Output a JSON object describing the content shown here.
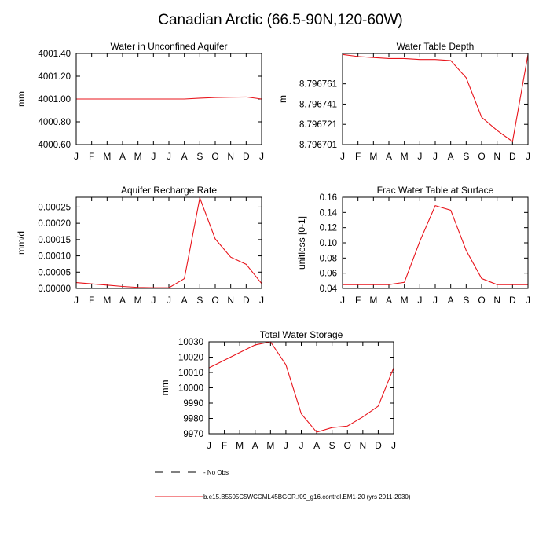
{
  "title": "Canadian Arctic (66.5-90N,120-60W)",
  "months": [
    "J",
    "F",
    "M",
    "A",
    "M",
    "J",
    "J",
    "A",
    "S",
    "O",
    "N",
    "D",
    "J"
  ],
  "line_color": "#e8141b",
  "chart_data": [
    {
      "type": "line",
      "title": "Water in Unconfined Aquifer",
      "ylabel": "mm",
      "ylim": [
        4000.6,
        4001.4
      ],
      "yticks": [
        4000.6,
        4000.8,
        4001.0,
        4001.2,
        4001.4
      ],
      "yticklabels": [
        "4000.60",
        "4000.80",
        "4001.00",
        "4001.20",
        "4001.40"
      ],
      "values": [
        4001.0,
        4001.0,
        4001.0,
        4001.0,
        4001.0,
        4001.0,
        4001.0,
        4001.0,
        4001.007,
        4001.013,
        4001.016,
        4001.018,
        4001.0
      ]
    },
    {
      "type": "line",
      "title": "Water Table Depth",
      "ylabel": "m",
      "ylim": [
        8.796701,
        8.796791
      ],
      "yticks": [
        8.796701,
        8.796721,
        8.796741,
        8.796761
      ],
      "yticklabels": [
        "8.796701",
        "8.796721",
        "8.796741",
        "8.796761"
      ],
      "values": [
        8.79679,
        8.796788,
        8.796787,
        8.796786,
        8.796786,
        8.796785,
        8.796785,
        8.796784,
        8.796767,
        8.796728,
        8.796715,
        8.796704,
        8.79679
      ]
    },
    {
      "type": "line",
      "title": "Aquifer Recharge Rate",
      "ylabel": "mm/d",
      "ylim": [
        0,
        0.00028
      ],
      "yticks": [
        0,
        5e-05,
        0.0001,
        0.00015,
        0.0002,
        0.00025
      ],
      "yticklabels": [
        "0.00000",
        "0.00005",
        "0.00010",
        "0.00015",
        "0.00020",
        "0.00025"
      ],
      "values": [
        1.8e-05,
        1.4e-05,
        1e-05,
        6e-06,
        3e-06,
        2e-06,
        2e-06,
        3e-05,
        0.000278,
        0.000152,
        9.6e-05,
        7.4e-05,
        1.5e-05
      ]
    },
    {
      "type": "line",
      "title": "Frac Water Table at Surface",
      "ylabel": "unitless [0-1]",
      "ylim": [
        0.04,
        0.16
      ],
      "yticks": [
        0.04,
        0.06,
        0.08,
        0.1,
        0.12,
        0.14,
        0.16
      ],
      "yticklabels": [
        "0.04",
        "0.06",
        "0.08",
        "0.10",
        "0.12",
        "0.14",
        "0.16"
      ],
      "values": [
        0.045,
        0.045,
        0.045,
        0.045,
        0.048,
        0.102,
        0.149,
        0.143,
        0.09,
        0.053,
        0.045,
        0.045,
        0.045
      ]
    },
    {
      "type": "line",
      "title": "Total Water Storage",
      "ylabel": "mm",
      "ylim": [
        9970,
        10030
      ],
      "yticks": [
        9970,
        9980,
        9990,
        10000,
        10010,
        10020,
        10030
      ],
      "yticklabels": [
        "9970",
        "9980",
        "9990",
        "10000",
        "10010",
        "10020",
        "10030"
      ],
      "values": [
        10013,
        10018,
        10023,
        10028,
        10030,
        10015,
        9983,
        9971,
        9974,
        9975,
        9981,
        9988,
        10013
      ]
    }
  ],
  "legend": [
    {
      "style": "dashed",
      "color": "#000000",
      "label": "- No Obs"
    },
    {
      "style": "solid",
      "color": "#e8141b",
      "label": "b.e15.B5505C5WCCML45BGCR.f09_g16.control.EM1-20 (yrs 2011-2030)"
    }
  ]
}
